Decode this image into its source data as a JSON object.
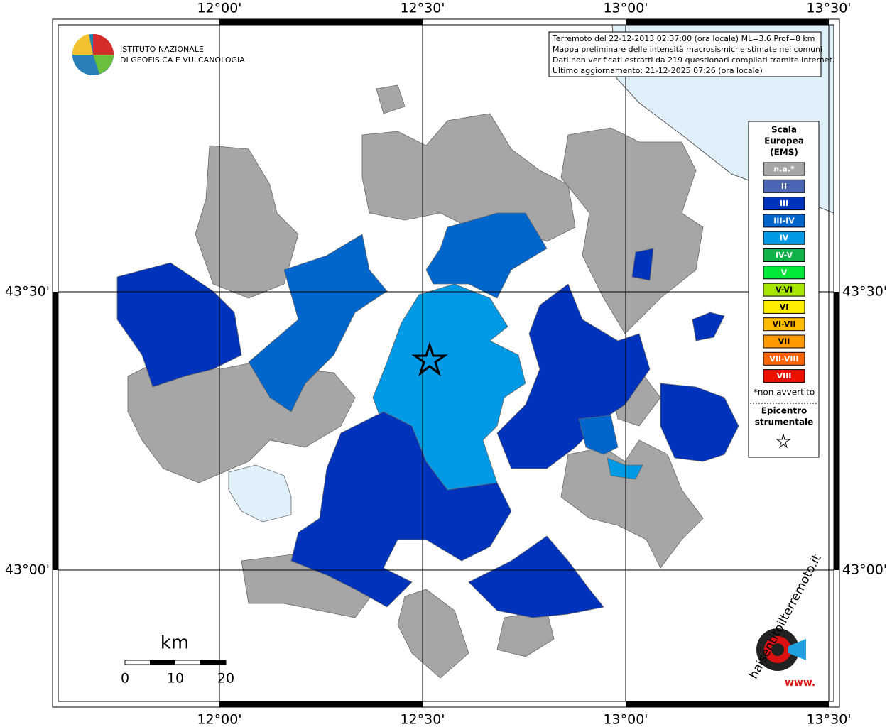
{
  "map": {
    "lon_labels": [
      "12°00'",
      "12°30'",
      "13°00'",
      "13°30'"
    ],
    "lat_labels": [
      "43°30'",
      "43°00'"
    ]
  },
  "logo": {
    "lines": [
      "ISTITUTO NAZIONALE",
      "DI GEOFISICA E VULCANOLOGIA"
    ]
  },
  "info": {
    "lines": [
      "Terremoto del 22-12-2013 02:37:00 (ora locale) ML=3.6 Prof=8 km",
      "Mappa preliminare delle intensità macrosismiche stimate nei comuni",
      "Dati non verificati estratti da 219 questionari compilati tramite Internet.",
      "Ultimo aggiornamento: 21-12-2025 07:26 (ora locale)"
    ]
  },
  "legend": {
    "title": [
      "Scala",
      "Europea",
      "(EMS)"
    ],
    "classes": [
      {
        "label": "n.a.*",
        "color": "#a6a6a6"
      },
      {
        "label": "II",
        "color": "#4a66b4"
      },
      {
        "label": "III",
        "color": "#0033bb"
      },
      {
        "label": "III-IV",
        "color": "#0066cc"
      },
      {
        "label": "IV",
        "color": "#0099e6"
      },
      {
        "label": "IV-V",
        "color": "#11b34a"
      },
      {
        "label": "V",
        "color": "#00e838"
      },
      {
        "label": "V-VI",
        "color": "#a6e600"
      },
      {
        "label": "VI",
        "color": "#ffee00"
      },
      {
        "label": "VI-VII",
        "color": "#ffbb00"
      },
      {
        "label": "VII",
        "color": "#ff9900"
      },
      {
        "label": "VII-VIII",
        "color": "#ff6600"
      },
      {
        "label": "VIII",
        "color": "#ee1100"
      }
    ],
    "note": "*non avvertito",
    "epicenter": [
      "Epicentro",
      "strumentale"
    ]
  },
  "scale": {
    "unit": "km",
    "ticks": [
      "0",
      "10",
      "20"
    ]
  },
  "brand": {
    "site": "haisentitoilterremoto.it",
    "www": "www."
  }
}
